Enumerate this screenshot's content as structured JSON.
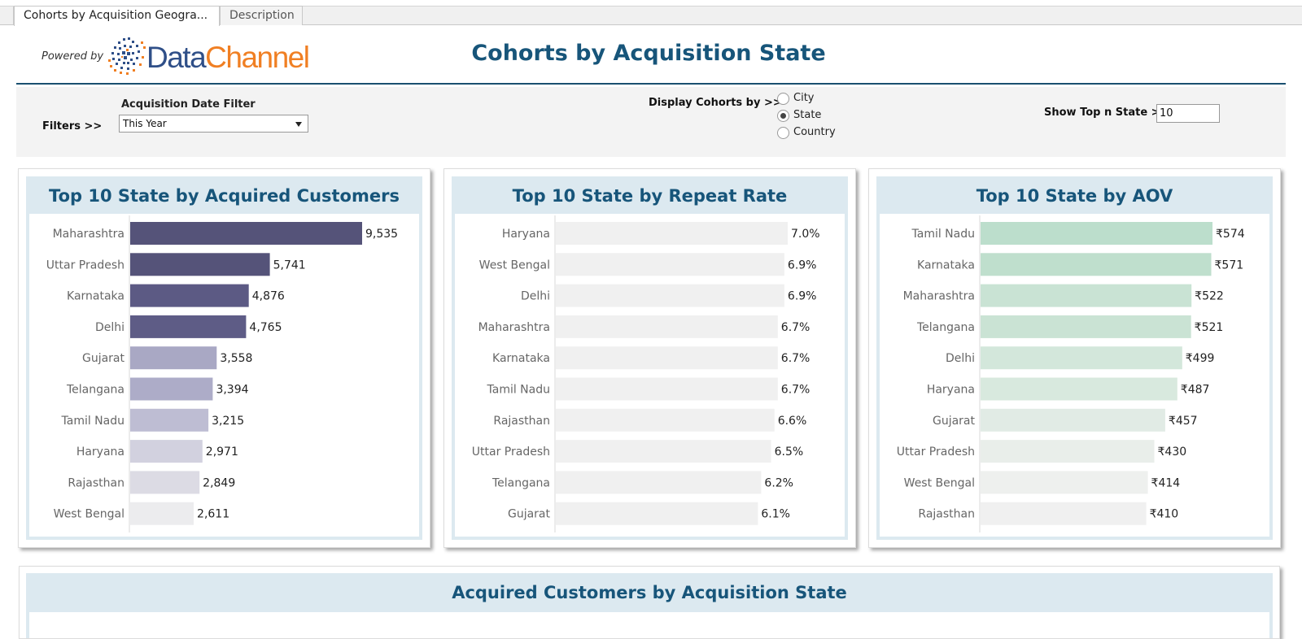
{
  "tabs": [
    {
      "label": "Cohorts by Acquisition Geogra...",
      "active": true
    },
    {
      "label": "Description",
      "active": false
    }
  ],
  "header": {
    "powered_by": "Powered by",
    "logo_data": "Data",
    "logo_channel": "Channel",
    "title": "Cohorts by Acquisition State"
  },
  "filters": {
    "label": "Filters >>",
    "acq_date_label": "Acquisition Date Filter",
    "acq_date_value": "This Year",
    "display_label": "Display Cohorts by  >>",
    "display_options": [
      "City",
      "State",
      "Country"
    ],
    "display_selected": "State",
    "topn_label": "Show Top n State >>",
    "topn_value": "10"
  },
  "colors": {
    "title_blue": "#17557a",
    "panel_header": "#dce9f0",
    "logo_blue": "#2f4f88",
    "logo_orange": "#f07f23"
  },
  "chart_data": [
    {
      "type": "bar",
      "title": "Top 10 State by Acquired Customers",
      "categories": [
        "Maharashtra",
        "Uttar Pradesh",
        "Karnataka",
        "Delhi",
        "Gujarat",
        "Telangana",
        "Tamil Nadu",
        "Haryana",
        "Rajasthan",
        "West Bengal"
      ],
      "values": [
        9535,
        5741,
        4876,
        4765,
        3558,
        3394,
        3215,
        2971,
        2849,
        2611
      ],
      "labels": [
        "9,535",
        "5,741",
        "4,876",
        "4,765",
        "3,558",
        "3,394",
        "3,215",
        "2,971",
        "2,849",
        "2,611"
      ],
      "bar_colors": [
        "#555379",
        "#555379",
        "#5c5a84",
        "#5e5c86",
        "#a9a8c4",
        "#adacc8",
        "#bebdd3",
        "#d2d1df",
        "#dcdbe4",
        "#ececee"
      ],
      "orientation": "horizontal",
      "xlim": [
        0,
        9535
      ]
    },
    {
      "type": "bar",
      "title": "Top 10 State by Repeat Rate",
      "categories": [
        "Haryana",
        "West Bengal",
        "Delhi",
        "Maharashtra",
        "Karnataka",
        "Tamil Nadu",
        "Rajasthan",
        "Uttar Pradesh",
        "Telangana",
        "Gujarat"
      ],
      "values": [
        7.0,
        6.9,
        6.9,
        6.7,
        6.7,
        6.7,
        6.6,
        6.5,
        6.2,
        6.1
      ],
      "labels": [
        "7.0%",
        "6.9%",
        "6.9%",
        "6.7%",
        "6.7%",
        "6.7%",
        "6.6%",
        "6.5%",
        "6.2%",
        "6.1%"
      ],
      "bar_colors": [
        "#f0f0f0",
        "#f0f0f0",
        "#f0f0f0",
        "#f0f0f0",
        "#f0f0f0",
        "#f0f0f0",
        "#f0f0f0",
        "#f0f0f0",
        "#f0f0f0",
        "#f0f0f0"
      ],
      "orientation": "horizontal",
      "xlim": [
        0,
        7.0
      ]
    },
    {
      "type": "bar",
      "title": "Top 10 State by AOV",
      "categories": [
        "Tamil Nadu",
        "Karnataka",
        "Maharashtra",
        "Telangana",
        "Delhi",
        "Haryana",
        "Gujarat",
        "Uttar Pradesh",
        "West Bengal",
        "Rajasthan"
      ],
      "values": [
        574,
        571,
        522,
        521,
        499,
        487,
        457,
        430,
        414,
        410
      ],
      "labels": [
        "₹574",
        "₹571",
        "₹522",
        "₹521",
        "₹499",
        "₹487",
        "₹457",
        "₹430",
        "₹414",
        "₹410"
      ],
      "bar_colors": [
        "#bcdecc",
        "#bfdfcd",
        "#c9e3d4",
        "#cae3d4",
        "#d3e7db",
        "#d8e9de",
        "#e1ebe5",
        "#e9eeea",
        "#eef0ee",
        "#f0f0f0"
      ],
      "orientation": "horizontal",
      "xlim": [
        0,
        574
      ]
    }
  ],
  "bottom": {
    "title": "Acquired Customers by Acquisition State"
  }
}
